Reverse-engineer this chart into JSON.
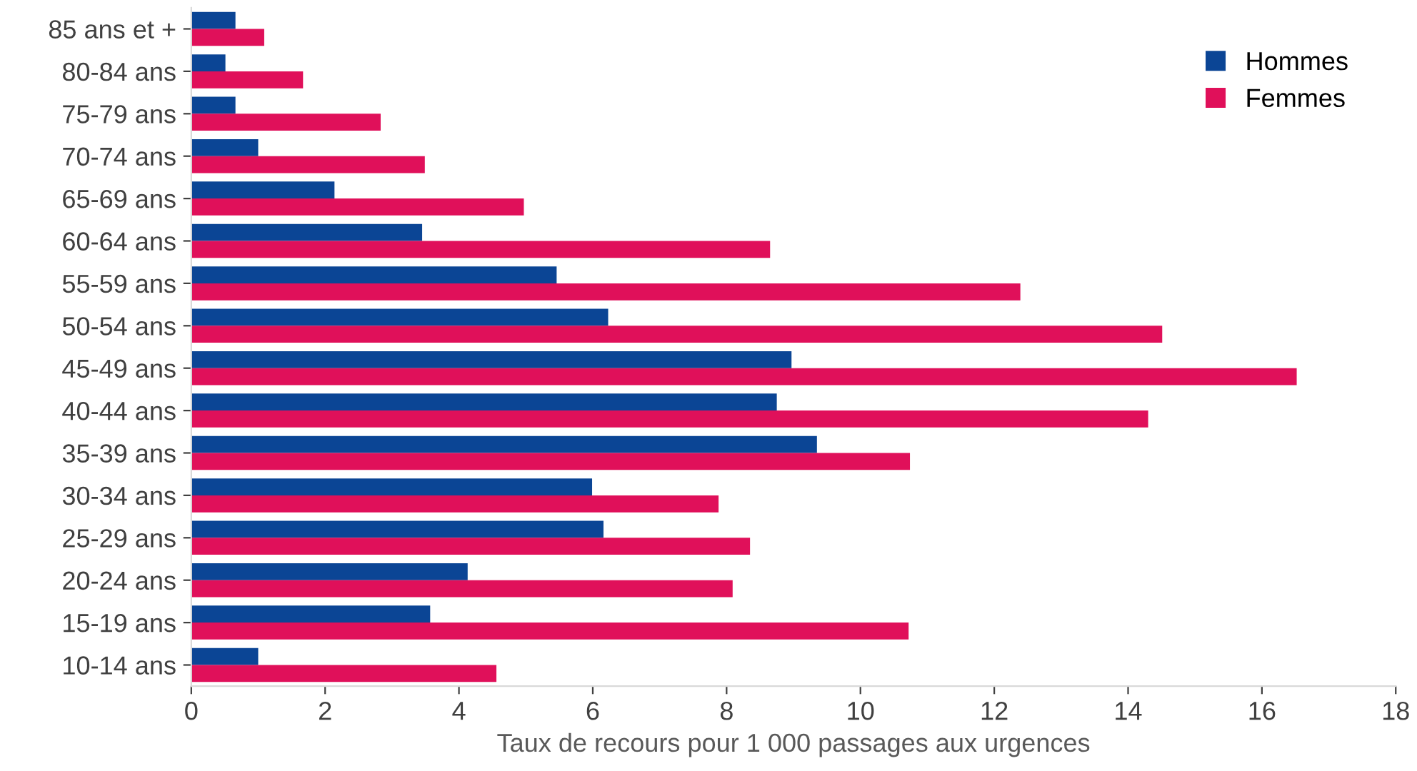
{
  "chart_data": {
    "type": "bar",
    "orientation": "horizontal",
    "xlabel": "Taux de recours pour 1 000 passages aux urgences",
    "categories": [
      "85 ans et +",
      "80-84 ans",
      "75-79 ans",
      "70-74 ans",
      "65-69 ans",
      "60-64 ans",
      "55-59 ans",
      "50-54 ans",
      "45-49 ans",
      "40-44 ans",
      "35-39 ans",
      "30-34 ans",
      "25-29 ans",
      "20-24 ans",
      "15-19 ans",
      "10-14 ans"
    ],
    "series": [
      {
        "name": "Hommes",
        "color": "#0b4595",
        "values": [
          0.66,
          0.51,
          0.66,
          1.0,
          2.14,
          3.45,
          5.46,
          6.23,
          8.97,
          8.75,
          9.35,
          5.99,
          6.16,
          4.13,
          3.57,
          1.0
        ]
      },
      {
        "name": "Femmes",
        "color": "#e0105a",
        "values": [
          1.09,
          1.67,
          2.83,
          3.49,
          4.97,
          8.65,
          12.39,
          14.51,
          16.52,
          14.3,
          10.74,
          7.88,
          8.35,
          8.09,
          10.72,
          4.56
        ]
      }
    ],
    "xlim": [
      0,
      18
    ],
    "xticks": [
      0,
      2,
      4,
      6,
      8,
      10,
      12,
      14,
      16,
      18
    ],
    "grid": false,
    "legend": "top right"
  }
}
